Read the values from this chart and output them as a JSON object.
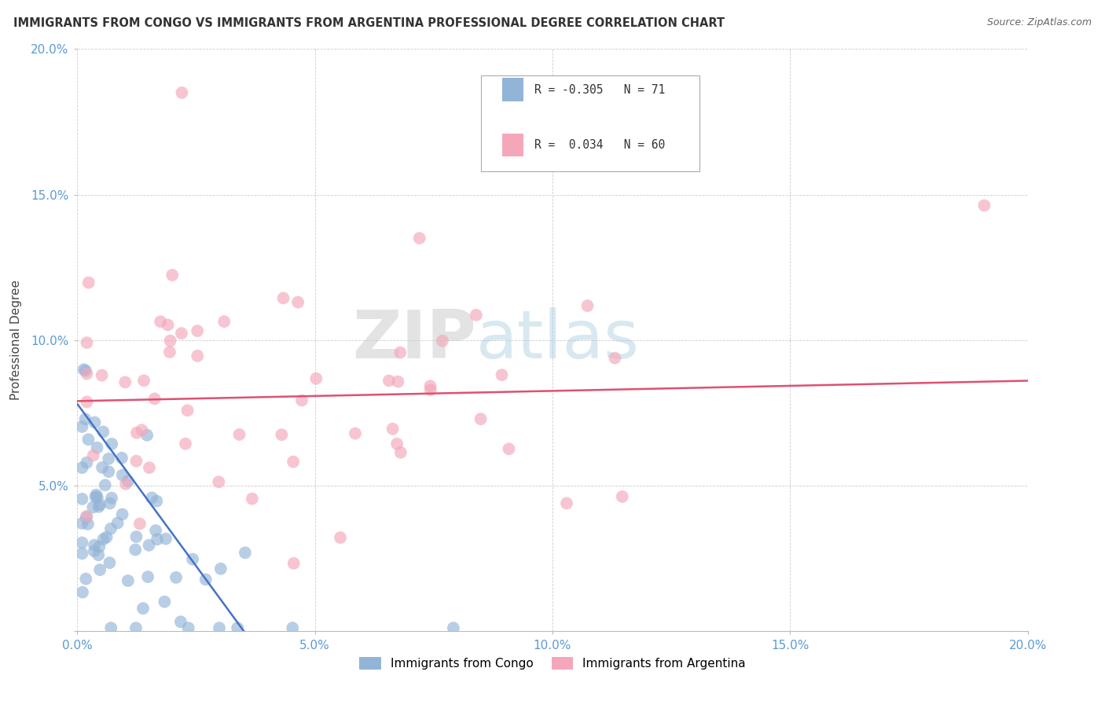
{
  "title": "IMMIGRANTS FROM CONGO VS IMMIGRANTS FROM ARGENTINA PROFESSIONAL DEGREE CORRELATION CHART",
  "source": "Source: ZipAtlas.com",
  "ylabel": "Professional Degree",
  "xlim": [
    0.0,
    0.2
  ],
  "ylim": [
    0.0,
    0.2
  ],
  "xticks": [
    0.0,
    0.05,
    0.1,
    0.15,
    0.2
  ],
  "yticks": [
    0.0,
    0.05,
    0.1,
    0.15,
    0.2
  ],
  "xticklabels": [
    "0.0%",
    "5.0%",
    "10.0%",
    "15.0%",
    "20.0%"
  ],
  "yticklabels": [
    "",
    "5.0%",
    "10.0%",
    "15.0%",
    "20.0%"
  ],
  "congo_R": "-0.305",
  "congo_N": "71",
  "argentina_R": "0.034",
  "argentina_N": "60",
  "congo_color": "#92b4d7",
  "argentina_color": "#f4a7b9",
  "congo_line_color": "#4472c4",
  "argentina_line_color": "#e05070",
  "legend_label_congo": "Immigrants from Congo",
  "legend_label_argentina": "Immigrants from Argentina",
  "watermark_zip": "ZIP",
  "watermark_atlas": "atlas",
  "background_color": "#ffffff",
  "grid_color": "#cccccc",
  "tick_color": "#5b9bd5",
  "congo_line_x": [
    0.0,
    0.035
  ],
  "congo_line_y": [
    0.078,
    0.0
  ],
  "argentina_line_x": [
    0.0,
    0.2
  ],
  "argentina_line_y": [
    0.079,
    0.086
  ]
}
